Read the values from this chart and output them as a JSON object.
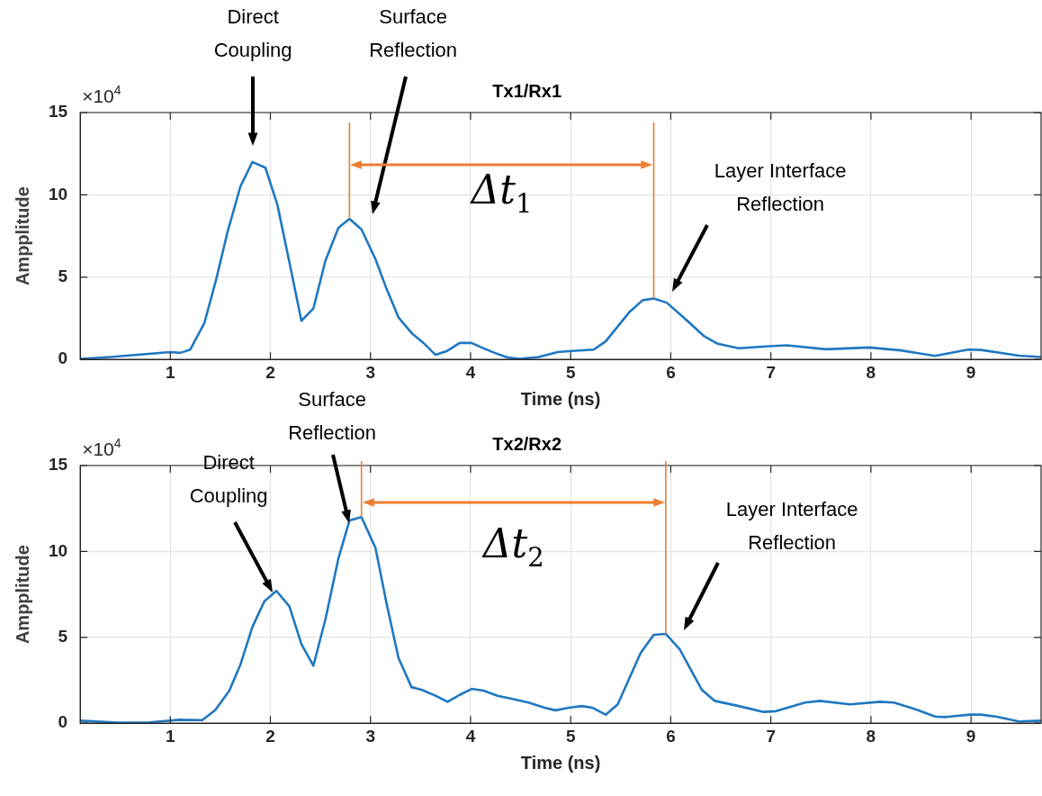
{
  "chart_data": [
    {
      "type": "line",
      "title": "Tx1/Rx1",
      "xlabel": "Time (ns)",
      "ylabel": "Ampplitude",
      "grid": true,
      "legend": false,
      "xlim": [
        0.1,
        9.7
      ],
      "xticks": [
        1,
        2,
        3,
        4,
        5,
        6,
        7,
        8,
        9
      ],
      "ylim": [
        0,
        15
      ],
      "yticks": [
        0,
        5,
        10,
        15
      ],
      "annotations": [
        "×10$^{4}$",
        "Direct Coupling",
        "Surface Reflection",
        "Layer Interface Reflection",
        "Δt$_{1}$"
      ],
      "ref_lines": [
        {
          "axis": "x",
          "value": 2.79,
          "color": "#ed7d31"
        },
        {
          "axis": "x",
          "value": 5.83,
          "color": "#ed7d31"
        }
      ],
      "series": [
        {
          "color": "#1f78c1",
          "x": [
            0.11,
            0.4,
            0.7,
            1.0,
            1.1,
            1.2,
            1.34,
            1.46,
            1.57,
            1.7,
            1.82,
            1.95,
            2.07,
            2.19,
            2.31,
            2.43,
            2.55,
            2.68,
            2.79,
            2.91,
            3.05,
            3.16,
            3.28,
            3.42,
            3.53,
            3.65,
            3.76,
            3.89,
            4.01,
            4.12,
            4.24,
            4.37,
            4.49,
            4.68,
            4.87,
            4.98,
            5.23,
            5.35,
            5.59,
            5.72,
            5.83,
            5.96,
            6.12,
            6.33,
            6.47,
            6.68,
            6.98,
            7.16,
            7.55,
            7.98,
            8.3,
            8.64,
            8.97,
            9.1,
            9.48,
            9.7
          ],
          "values": [
            0.03,
            0.15,
            0.3,
            0.45,
            0.4,
            0.6,
            2.2,
            4.9,
            7.7,
            10.5,
            12.0,
            11.65,
            9.4,
            5.9,
            2.35,
            3.1,
            6.0,
            8.0,
            8.55,
            7.9,
            6.1,
            4.3,
            2.55,
            1.55,
            1.0,
            0.28,
            0.5,
            1.0,
            1.0,
            0.7,
            0.4,
            0.12,
            0.03,
            0.15,
            0.45,
            0.5,
            0.6,
            1.1,
            2.9,
            3.6,
            3.7,
            3.45,
            2.6,
            1.43,
            0.95,
            0.68,
            0.8,
            0.86,
            0.62,
            0.73,
            0.55,
            0.22,
            0.6,
            0.58,
            0.23,
            0.15
          ]
        }
      ]
    },
    {
      "type": "line",
      "title": "Tx2/Rx2",
      "xlabel": "Time (ns)",
      "ylabel": "Ampplitude",
      "grid": true,
      "legend": false,
      "xlim": [
        0.1,
        9.7
      ],
      "xticks": [
        1,
        2,
        3,
        4,
        5,
        6,
        7,
        8,
        9
      ],
      "ylim": [
        0,
        15
      ],
      "yticks": [
        0,
        5,
        10,
        15
      ],
      "annotations": [
        "×10$^{4}$",
        "Direct Coupling",
        "Surface Reflection",
        "Layer Interface Reflection",
        "Δt$_{2}$"
      ],
      "ref_lines": [
        {
          "axis": "x",
          "value": 2.91,
          "color": "#ed7d31"
        },
        {
          "axis": "x",
          "value": 5.95,
          "color": "#ed7d31"
        }
      ],
      "series": [
        {
          "color": "#1f78c1",
          "x": [
            0.11,
            0.48,
            0.79,
            1.09,
            1.32,
            1.45,
            1.59,
            1.7,
            1.82,
            1.94,
            2.06,
            2.19,
            2.31,
            2.43,
            2.55,
            2.68,
            2.79,
            2.91,
            3.05,
            3.16,
            3.28,
            3.41,
            3.51,
            3.65,
            3.77,
            3.89,
            4.01,
            4.13,
            4.27,
            4.43,
            4.58,
            4.74,
            4.85,
            4.98,
            5.11,
            5.22,
            5.35,
            5.47,
            5.7,
            5.83,
            5.95,
            6.09,
            6.31,
            6.44,
            6.68,
            6.92,
            7.05,
            7.34,
            7.49,
            7.79,
            8.09,
            8.23,
            8.46,
            8.64,
            8.75,
            8.99,
            9.1,
            9.26,
            9.48,
            9.7
          ],
          "values": [
            0.15,
            0.03,
            0.05,
            0.2,
            0.18,
            0.77,
            1.9,
            3.4,
            5.6,
            7.1,
            7.7,
            6.8,
            4.6,
            3.35,
            6.05,
            9.6,
            11.8,
            12.0,
            10.2,
            7.0,
            3.8,
            2.1,
            1.95,
            1.6,
            1.25,
            1.65,
            2.0,
            1.9,
            1.6,
            1.4,
            1.2,
            0.9,
            0.75,
            0.9,
            1.0,
            0.9,
            0.5,
            1.1,
            4.1,
            5.15,
            5.2,
            4.3,
            1.95,
            1.3,
            1.0,
            0.66,
            0.7,
            1.2,
            1.3,
            1.1,
            1.25,
            1.2,
            0.78,
            0.39,
            0.36,
            0.5,
            0.5,
            0.38,
            0.1,
            0.15
          ]
        }
      ]
    }
  ]
}
